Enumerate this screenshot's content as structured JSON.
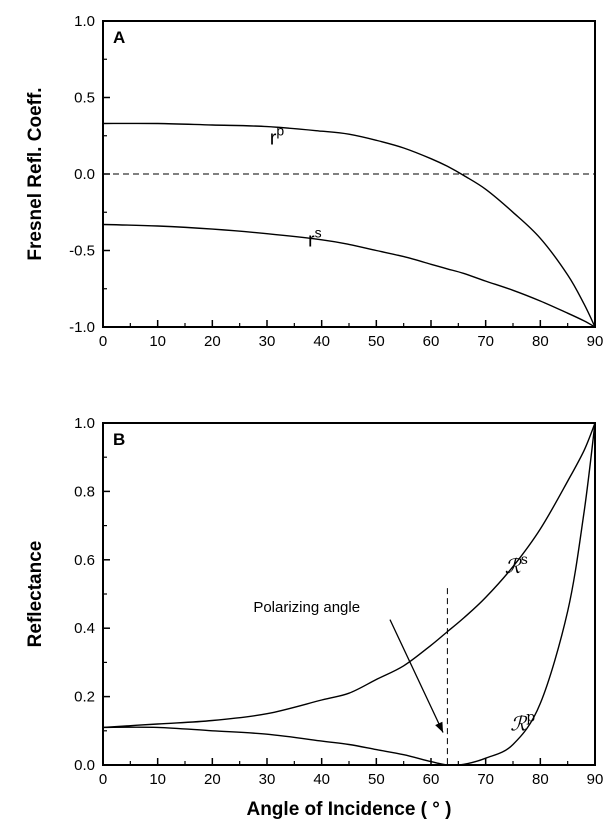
{
  "chart_data": [
    {
      "panel": "A",
      "type": "line",
      "ylabel": "Fresnel Refl. Coeff.",
      "xlabel": "",
      "xlim": [
        0,
        90
      ],
      "ylim": [
        -1.0,
        1.0
      ],
      "x_ticks": [
        "0",
        "10",
        "20",
        "30",
        "40",
        "50",
        "60",
        "70",
        "80",
        "90"
      ],
      "y_ticks": [
        "-1.0",
        "-0.5",
        "0.0",
        "0.5",
        "1.0"
      ],
      "reference_line": {
        "y": 0.0,
        "style": "dashed"
      },
      "series": [
        {
          "name": "r",
          "superscript": "p",
          "x": [
            0,
            10,
            20,
            30,
            40,
            45,
            50,
            55,
            60,
            63,
            66,
            70,
            75,
            80,
            85,
            88,
            90
          ],
          "y": [
            0.33,
            0.33,
            0.32,
            0.31,
            0.28,
            0.26,
            0.22,
            0.17,
            0.1,
            0.05,
            -0.01,
            -0.1,
            -0.25,
            -0.42,
            -0.66,
            -0.85,
            -1.0
          ]
        },
        {
          "name": "r",
          "superscript": "s",
          "x": [
            0,
            10,
            20,
            30,
            40,
            45,
            50,
            55,
            60,
            63,
            66,
            70,
            75,
            80,
            85,
            88,
            90
          ],
          "y": [
            -0.33,
            -0.34,
            -0.36,
            -0.39,
            -0.43,
            -0.46,
            -0.5,
            -0.54,
            -0.59,
            -0.62,
            -0.65,
            -0.7,
            -0.76,
            -0.83,
            -0.91,
            -0.96,
            -1.0
          ]
        }
      ]
    },
    {
      "panel": "B",
      "type": "line",
      "ylabel": "Reflectance",
      "xlabel": "Angle of Incidence ( ° )",
      "xlim": [
        0,
        90
      ],
      "ylim": [
        0.0,
        1.0
      ],
      "x_ticks": [
        "0",
        "10",
        "20",
        "30",
        "40",
        "50",
        "60",
        "70",
        "80",
        "90"
      ],
      "y_ticks": [
        "0.0",
        "0.2",
        "0.4",
        "0.6",
        "0.8",
        "1.0"
      ],
      "reference_line": {
        "x": 63,
        "style": "dashed"
      },
      "annotation": {
        "text": "Polarizing angle",
        "target": [
          63,
          0.05
        ]
      },
      "series": [
        {
          "name": "ℛ",
          "superscript": "s",
          "x": [
            0,
            10,
            20,
            30,
            40,
            45,
            50,
            55,
            60,
            63,
            66,
            70,
            75,
            80,
            85,
            88,
            90
          ],
          "y": [
            0.11,
            0.12,
            0.13,
            0.15,
            0.19,
            0.21,
            0.25,
            0.29,
            0.35,
            0.39,
            0.43,
            0.49,
            0.58,
            0.69,
            0.83,
            0.92,
            1.0
          ]
        },
        {
          "name": "ℛ",
          "superscript": "p",
          "x": [
            0,
            10,
            20,
            30,
            40,
            45,
            50,
            55,
            60,
            63,
            66,
            70,
            75,
            80,
            85,
            88,
            90
          ],
          "y": [
            0.11,
            0.11,
            0.1,
            0.09,
            0.07,
            0.06,
            0.045,
            0.03,
            0.01,
            0.0,
            0.002,
            0.02,
            0.06,
            0.18,
            0.45,
            0.74,
            1.0
          ]
        }
      ]
    }
  ]
}
